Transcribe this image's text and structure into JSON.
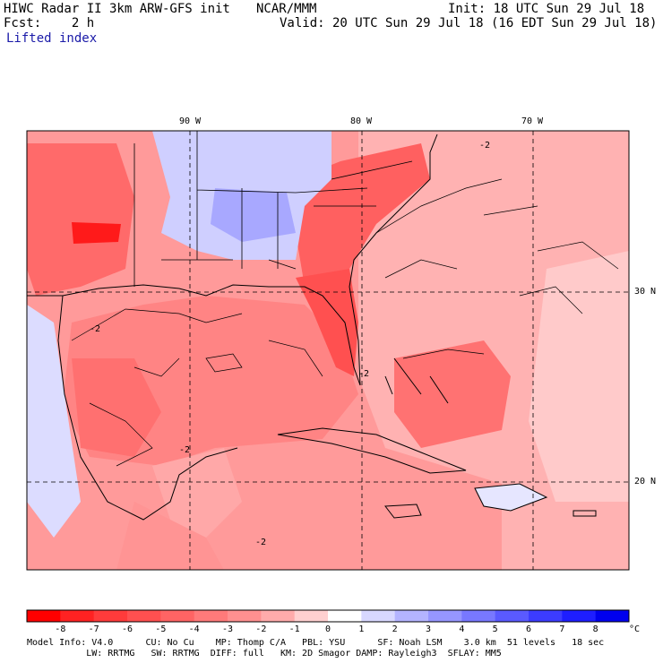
{
  "header": {
    "title_left": "HIWC Radar II 3km ARW-GFS init",
    "title_mid": "NCAR/MMM",
    "init": "Init: 18 UTC Sun 29 Jul 18",
    "fcst": "Fcst:    2 h",
    "valid": "Valid: 20 UTC Sun 29 Jul 18 (16 EDT Sun 29 Jul 18)",
    "field": "Lifted index"
  },
  "map": {
    "lon_labels": [
      "90 W",
      "80 W",
      "70 W"
    ],
    "lat_labels": [
      "30 N",
      "20 N"
    ],
    "contour_label": "-2"
  },
  "colorbar": {
    "labels": [
      "-8",
      "-7",
      "-6",
      "-5",
      "-4",
      "-3",
      "-2",
      "-1",
      "0",
      "1",
      "2",
      "3",
      "4",
      "5",
      "6",
      "7",
      "8"
    ],
    "unit": "°C",
    "colors": [
      "#ff0000",
      "#ff2222",
      "#ff3b3b",
      "#ff5050",
      "#ff6464",
      "#ff7a7a",
      "#ff9090",
      "#ffabab",
      "#ffd0d0",
      "#ffffff",
      "#d8d8ff",
      "#b4b4ff",
      "#9696ff",
      "#7878ff",
      "#5a5aff",
      "#3c3cff",
      "#1e1eff",
      "#0000ee"
    ]
  },
  "footer": {
    "line1": "Model Info: V4.0      CU: No Cu    MP: Thomp C/A   PBL: YSU      SF: Noah LSM    3.0 km  51 levels   18 sec",
    "line2": "           LW: RRTMG   SW: RRTMG  DIFF: full   KM: 2D Smagor DAMP: Rayleigh3  SFLAY: MM5"
  }
}
